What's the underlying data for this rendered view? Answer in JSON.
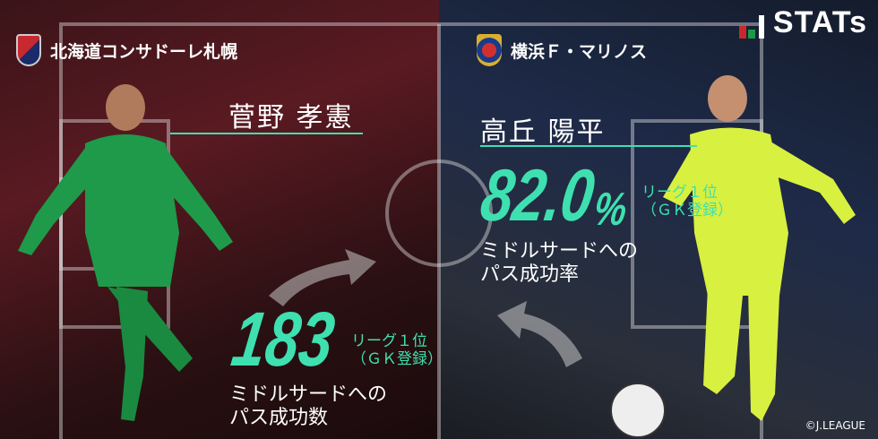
{
  "brand": {
    "label": "STATs",
    "colors": {
      "red": "#c8282c",
      "green": "#1c9a46"
    }
  },
  "accent": "#3ee0b0",
  "left": {
    "team": "北海道コンサドーレ札幌",
    "player": "菅野 孝憲",
    "value": "183",
    "rank_line1": "リーグ１位",
    "rank_line2": "（ＧＫ登録）",
    "desc_line1": "ミドルサードへの",
    "desc_line2": "パス成功数"
  },
  "right": {
    "team": "横浜Ｆ・マリノス",
    "player": "高丘 陽平",
    "value": "82.0",
    "unit": "%",
    "rank_line1": "リーグ１位",
    "rank_line2": "（ＧＫ登録）",
    "desc_line1": "ミドルサードへの",
    "desc_line2": "パス成功率"
  },
  "credit": "©J.LEAGUE"
}
